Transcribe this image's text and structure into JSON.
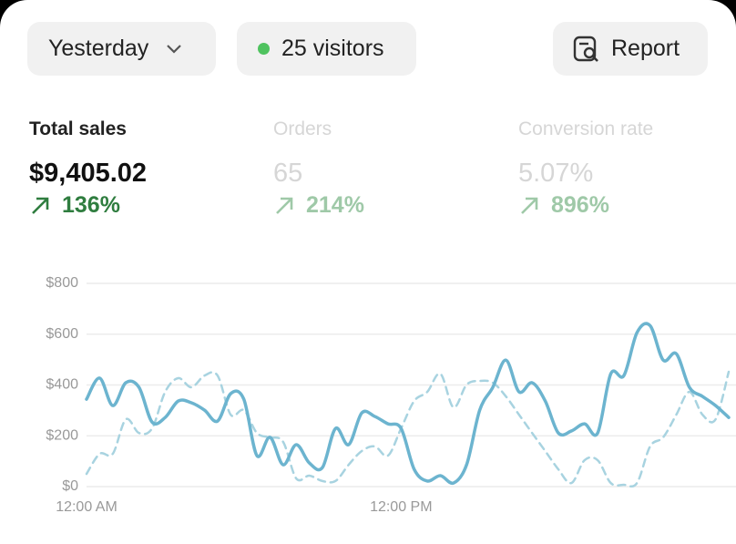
{
  "header": {
    "period": "Yesterday",
    "visitors": "25 visitors",
    "report": "Report"
  },
  "metrics": [
    {
      "label": "Total sales",
      "value": "$9,405.02",
      "change": "136%"
    },
    {
      "label": "Orders",
      "value": "65",
      "change": "214%"
    },
    {
      "label": "Conversion rate",
      "value": "5.07%",
      "change": "896%"
    }
  ],
  "chart_data": {
    "type": "line",
    "categories": [
      "12:00 AM",
      null,
      null,
      null,
      null,
      null,
      null,
      null,
      null,
      null,
      null,
      null,
      null,
      null,
      null,
      null,
      null,
      null,
      null,
      null,
      null,
      null,
      null,
      null,
      "12:00 PM",
      null,
      null,
      null,
      null,
      null,
      null,
      null,
      null,
      null,
      null,
      null,
      null,
      null,
      null,
      null,
      null,
      null,
      null,
      null,
      null,
      null,
      null,
      null,
      null,
      null
    ],
    "series": [
      {
        "color": "#6cb4cf",
        "values": [
          344,
          427,
          319,
          409,
          391,
          254,
          272,
          337,
          330,
          301,
          258,
          366,
          344,
          122,
          194,
          86,
          165,
          93,
          75,
          229,
          165,
          290,
          276,
          247,
          229,
          68,
          22,
          43,
          14,
          86,
          301,
          391,
          498,
          373,
          409,
          337,
          211,
          219,
          247,
          211,
          444,
          437,
          606,
          634,
          498,
          523,
          391,
          355,
          319,
          272
        ]
      },
      {
        "color": "#a8d3e0",
        "dashed": true,
        "values": [
          50,
          129,
          129,
          265,
          211,
          229,
          373,
          427,
          391,
          437,
          437,
          283,
          301,
          211,
          194,
          176,
          32,
          43,
          22,
          22,
          86,
          140,
          158,
          122,
          229,
          337,
          373,
          444,
          312,
          401,
          416,
          409,
          355,
          283,
          211,
          140,
          68,
          14,
          104,
          104,
          14,
          7,
          14,
          158,
          194,
          283,
          373,
          283,
          265,
          452
        ]
      }
    ],
    "ylim": [
      0,
      800
    ],
    "yticks": [
      {
        "value": 0,
        "label": "$0"
      },
      {
        "value": 200,
        "label": "$200"
      },
      {
        "value": 400,
        "label": "$400"
      },
      {
        "value": 600,
        "label": "$600"
      },
      {
        "value": 800,
        "label": "$800"
      }
    ],
    "grid": true
  }
}
